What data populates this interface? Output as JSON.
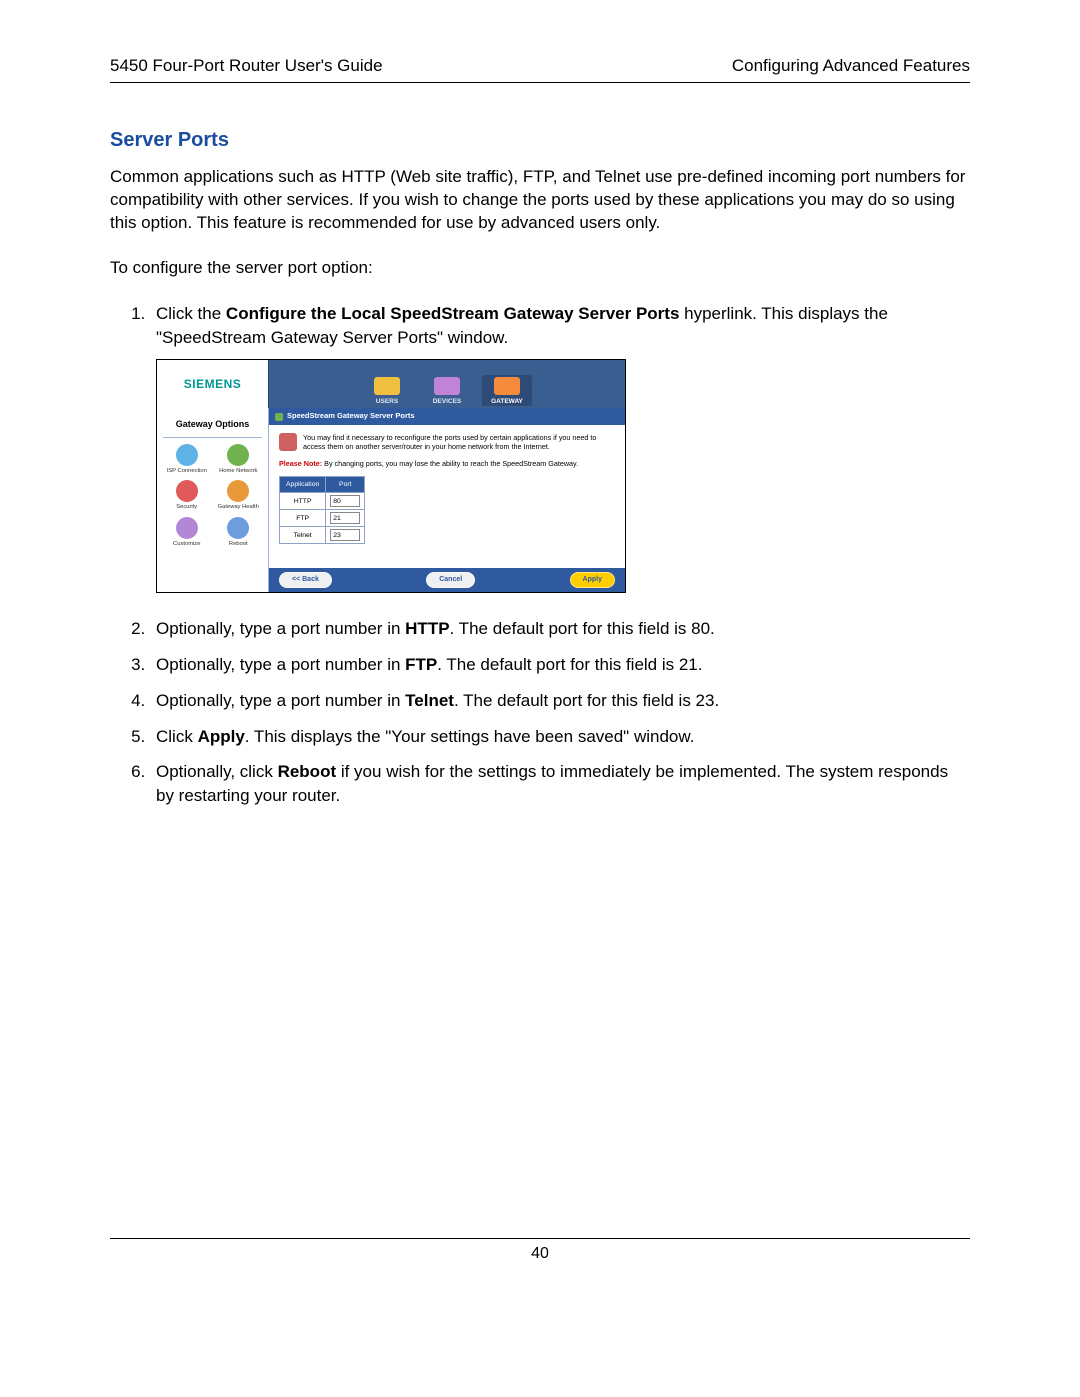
{
  "header": {
    "left": "5450 Four-Port Router User's Guide",
    "right": "Configuring Advanced Features"
  },
  "section_title": "Server Ports",
  "intro_para": "Common applications such as HTTP (Web site traffic), FTP, and Telnet use pre-defined incoming port numbers for compatibility with other services. If you wish to change the ports used by these applications you may do so using this option. This feature is recommended for use by advanced users only.",
  "configure_line": "To configure the server port option:",
  "steps": {
    "s1_a": "Click the ",
    "s1_b": "Configure the Local SpeedStream Gateway Server Ports",
    "s1_c": " hyperlink. This displays the \"SpeedStream Gateway Server Ports\" window.",
    "s2_a": "Optionally, type a port number in ",
    "s2_b": "HTTP",
    "s2_c": ". The default port for this field is 80.",
    "s3_a": "Optionally, type a port number in ",
    "s3_b": "FTP",
    "s3_c": ". The default port for this field is 21.",
    "s4_a": "Optionally, type a port number in ",
    "s4_b": "Telnet",
    "s4_c": ". The default port for this field is 23.",
    "s5_a": "Click ",
    "s5_b": "Apply",
    "s5_c": ". This displays the \"Your settings have been saved\" window.",
    "s6_a": "Optionally, click ",
    "s6_b": "Reboot",
    "s6_c": " if you wish for the settings to immediately be implemented. The system responds by restarting your router."
  },
  "screenshot": {
    "logo": "SIEMENS",
    "tabs": {
      "users": "USERS",
      "devices": "DEVICES",
      "gateway": "GATEWAY"
    },
    "tab_colors": {
      "users": "#f0c040",
      "devices": "#c183d6",
      "gateway": "#f58a3c"
    },
    "sidebar_title": "Gateway Options",
    "options": [
      {
        "label": "ISP Connection",
        "color": "#5fb2e6"
      },
      {
        "label": "Home Network",
        "color": "#6fb24f"
      },
      {
        "label": "Security",
        "color": "#e05a5a"
      },
      {
        "label": "Gateway Health",
        "color": "#e89a3a"
      },
      {
        "label": "Customize",
        "color": "#b187d6"
      },
      {
        "label": "Reboot",
        "color": "#6c9edb"
      }
    ],
    "panel_title": "SpeedStream Gateway Server Ports",
    "panel_intro": "You may find it necessary to reconfigure the ports used by certain applications if you need to access them on another server/router in your home network from the Internet.",
    "note_prefix": "Please Note:",
    "note_rest": " By changing ports, you may lose the ability to reach the SpeedStream Gateway.",
    "table": {
      "col_app": "Application",
      "col_port": "Port",
      "rows": [
        {
          "app": "HTTP",
          "port": "80"
        },
        {
          "app": "FTP",
          "port": "21"
        },
        {
          "app": "Telnet",
          "port": "23"
        }
      ]
    },
    "btn_back": "<< Back",
    "btn_cancel": "Cancel",
    "btn_apply": "Apply",
    "intro_icon_color": "#d06060"
  },
  "page_number": "40"
}
